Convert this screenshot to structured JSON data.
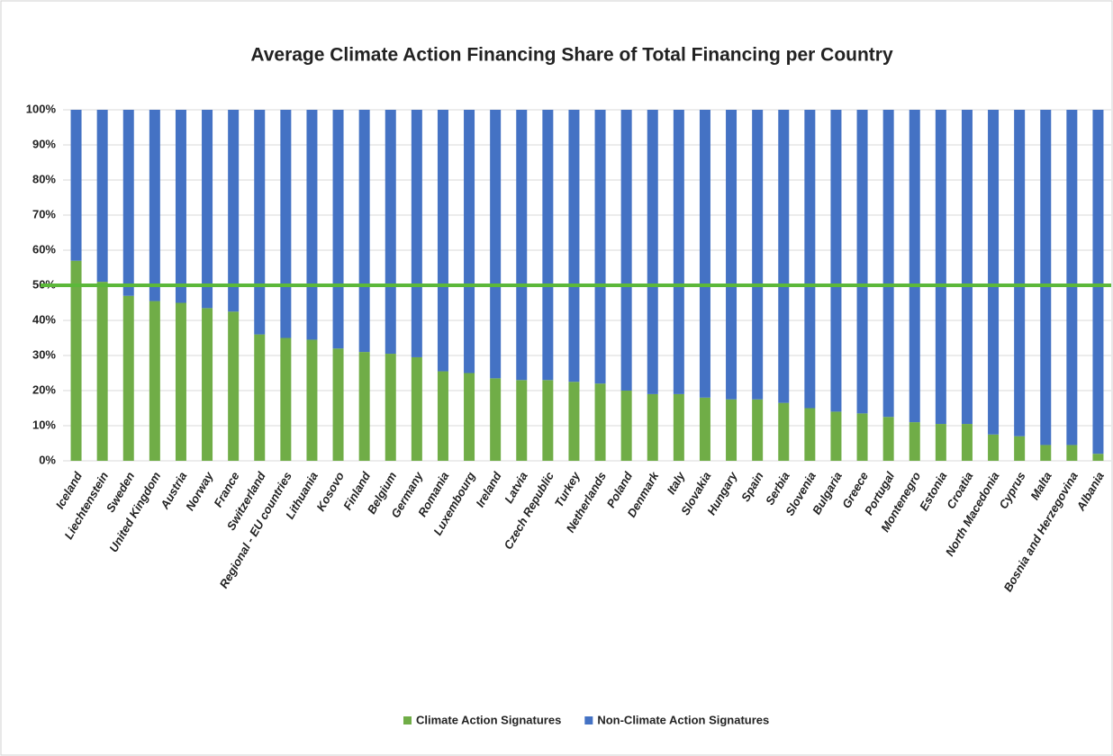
{
  "chart_data": {
    "type": "stacked_bar_percent",
    "title": "Average Climate Action Financing Share of Total Financing per Country",
    "categories": [
      "Iceland",
      "Liechtenstein",
      "Sweden",
      "United Kingdom",
      "Austria",
      "Norway",
      "France",
      "Switzerland",
      "Regional - EU countries",
      "Lithuania",
      "Kosovo",
      "Finland",
      "Belgium",
      "Germany",
      "Romania",
      "Luxembourg",
      "Ireland",
      "Latvia",
      "Czech Republic",
      "Turkey",
      "Netherlands",
      "Poland",
      "Denmark",
      "Italy",
      "Slovakia",
      "Hungary",
      "Spain",
      "Serbia",
      "Slovenia",
      "Bulgaria",
      "Greece",
      "Portugal",
      "Montenegro",
      "Estonia",
      "Croatia",
      "North Macedonia",
      "Cyprus",
      "Malta",
      "Bosnia and Herzegovina",
      "Albania"
    ],
    "series": [
      {
        "name": "Climate Action Signatures",
        "color": "#70ad47",
        "values": [
          57,
          51,
          47,
          45.5,
          45,
          43.5,
          42.5,
          36,
          35,
          34.5,
          32,
          31,
          30.5,
          29.5,
          25.5,
          25,
          23.5,
          23,
          23,
          22.5,
          22,
          20,
          19,
          19,
          18,
          17.5,
          17.5,
          16.5,
          15,
          14,
          13.5,
          12.5,
          11,
          10.5,
          10.5,
          7.5,
          7,
          4.5,
          4.5,
          2
        ]
      },
      {
        "name": "Non-Climate Action Signatures",
        "color": "#4472c4",
        "values": [
          43,
          49,
          53,
          54.5,
          55,
          56.5,
          57.5,
          64,
          65,
          65.5,
          68,
          69,
          69.5,
          70.5,
          74.5,
          75,
          76.5,
          77,
          77,
          77.5,
          78,
          80,
          81,
          81,
          82,
          82.5,
          82.5,
          83.5,
          85,
          86,
          86.5,
          87.5,
          89,
          89.5,
          89.5,
          92.5,
          93,
          95.5,
          95.5,
          98
        ]
      }
    ],
    "reference_line": {
      "value": 50,
      "color": "#5cb83a"
    },
    "ylim": [
      0,
      100
    ],
    "yticks": [
      {
        "value": 0,
        "label": "0%"
      },
      {
        "value": 10,
        "label": "10%"
      },
      {
        "value": 20,
        "label": "20%"
      },
      {
        "value": 30,
        "label": "30%"
      },
      {
        "value": 40,
        "label": "40%"
      },
      {
        "value": 50,
        "label": "50%"
      },
      {
        "value": 60,
        "label": "60%"
      },
      {
        "value": 70,
        "label": "70%"
      },
      {
        "value": 80,
        "label": "80%"
      },
      {
        "value": 90,
        "label": "90%"
      },
      {
        "value": 100,
        "label": "100%"
      }
    ],
    "grid": true,
    "legend": "bottom"
  }
}
